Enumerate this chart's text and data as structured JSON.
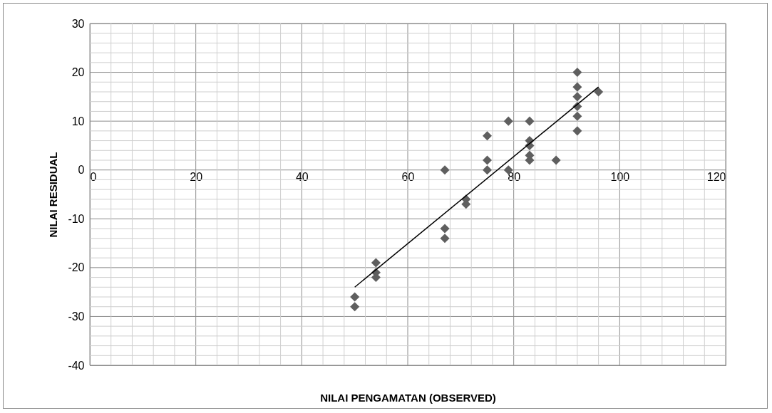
{
  "chart_data": {
    "type": "scatter",
    "xlabel": "NILAI PENGAMATAN (OBSERVED)",
    "ylabel": "NILAI RESIDUAL",
    "xlim": [
      0,
      120
    ],
    "xticks": [
      0,
      20,
      40,
      60,
      80,
      100,
      120
    ],
    "ylim": [
      -40,
      30
    ],
    "yticks": [
      -40,
      -30,
      -20,
      -10,
      0,
      10,
      20,
      30
    ],
    "grid": true,
    "series": [
      {
        "marker": "diamond",
        "color": "#5f5f5f",
        "x": [
          50,
          50,
          54,
          54,
          54,
          67,
          67,
          67,
          71,
          71,
          75,
          75,
          75,
          79,
          79,
          83,
          83,
          83,
          83,
          83,
          88,
          92,
          92,
          92,
          92,
          92,
          92,
          96
        ],
        "values": [
          -26,
          -28,
          -19,
          -21,
          -22,
          0,
          -12,
          -14,
          -6,
          -7,
          7,
          2,
          0,
          10,
          0,
          10,
          6,
          5,
          3,
          2,
          2,
          20,
          17,
          15,
          13,
          11,
          8,
          16
        ]
      },
      {
        "type": "line",
        "color": "#000000",
        "x": [
          50,
          96
        ],
        "values": [
          -24,
          17
        ],
        "line_style": "solid"
      }
    ]
  }
}
